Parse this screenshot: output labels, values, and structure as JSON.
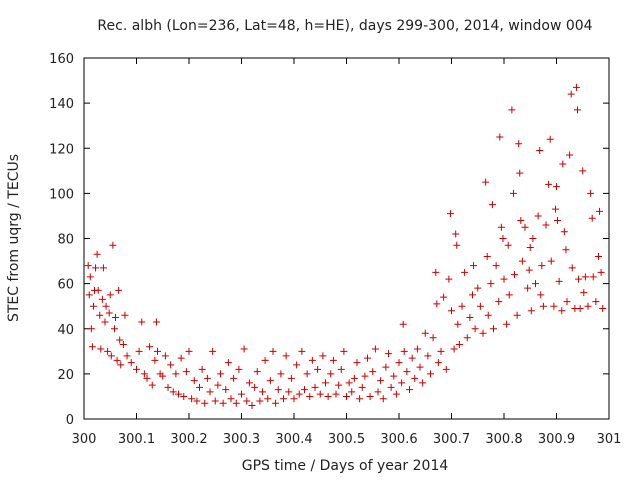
{
  "chart_data": {
    "type": "scatter",
    "title": "Rec. albh (Lon=236, Lat=48, h=HE), days 299-300, 2014, window 004",
    "xlabel": "GPS time / Days of year 2014",
    "ylabel": "STEC from uqrg / TECUs",
    "xlim": [
      300,
      301
    ],
    "ylim": [
      0,
      160
    ],
    "xticks": [
      "300",
      "300.1",
      "300.2",
      "300.3",
      "300.4",
      "300.5",
      "300.6",
      "300.7",
      "300.8",
      "300.9",
      "301"
    ],
    "yticks": [
      "0",
      "20",
      "40",
      "60",
      "80",
      "100",
      "120",
      "140",
      "160"
    ],
    "marker": "+",
    "color": "#cc0000",
    "grid": false,
    "series": [
      {
        "name": "STEC",
        "points": [
          [
            300.008,
            68
          ],
          [
            300.01,
            55
          ],
          [
            300.012,
            63
          ],
          [
            300.014,
            40
          ],
          [
            300.016,
            32
          ],
          [
            300.018,
            50
          ],
          [
            300.02,
            57
          ],
          [
            300.022,
            67
          ],
          [
            300.025,
            73
          ],
          [
            300.027,
            57
          ],
          [
            300.03,
            46
          ],
          [
            300.032,
            31
          ],
          [
            300.035,
            53
          ],
          [
            300.037,
            67
          ],
          [
            300.04,
            43
          ],
          [
            300.042,
            50
          ],
          [
            300.045,
            30
          ],
          [
            300.048,
            47
          ],
          [
            300.05,
            55
          ],
          [
            300.052,
            28
          ],
          [
            300.055,
            77
          ],
          [
            300.058,
            40
          ],
          [
            300.06,
            45
          ],
          [
            300.063,
            26
          ],
          [
            300.066,
            57
          ],
          [
            300.068,
            35
          ],
          [
            300.07,
            24
          ],
          [
            300.075,
            33
          ],
          [
            300.078,
            46
          ],
          [
            300.082,
            28
          ],
          [
            300.09,
            25
          ],
          [
            300.1,
            22
          ],
          [
            300.105,
            30
          ],
          [
            300.11,
            43
          ],
          [
            300.115,
            20
          ],
          [
            300.12,
            18
          ],
          [
            300.125,
            32
          ],
          [
            300.13,
            15
          ],
          [
            300.135,
            26
          ],
          [
            300.138,
            43
          ],
          [
            300.14,
            30
          ],
          [
            300.145,
            20
          ],
          [
            300.15,
            19
          ],
          [
            300.155,
            28
          ],
          [
            300.16,
            14
          ],
          [
            300.165,
            24
          ],
          [
            300.17,
            12
          ],
          [
            300.175,
            20
          ],
          [
            300.18,
            11
          ],
          [
            300.185,
            27
          ],
          [
            300.19,
            10
          ],
          [
            300.195,
            21
          ],
          [
            300.2,
            30
          ],
          [
            300.205,
            9
          ],
          [
            300.21,
            17
          ],
          [
            300.215,
            8
          ],
          [
            300.22,
            14
          ],
          [
            300.225,
            22
          ],
          [
            300.23,
            7
          ],
          [
            300.235,
            18
          ],
          [
            300.24,
            12
          ],
          [
            300.245,
            30
          ],
          [
            300.25,
            8
          ],
          [
            300.255,
            15
          ],
          [
            300.26,
            20
          ],
          [
            300.265,
            7
          ],
          [
            300.27,
            13
          ],
          [
            300.275,
            25
          ],
          [
            300.28,
            9
          ],
          [
            300.285,
            18
          ],
          [
            300.29,
            7
          ],
          [
            300.295,
            22
          ],
          [
            300.3,
            11
          ],
          [
            300.305,
            31
          ],
          [
            300.31,
            8
          ],
          [
            300.315,
            16
          ],
          [
            300.32,
            6
          ],
          [
            300.325,
            14
          ],
          [
            300.33,
            21
          ],
          [
            300.335,
            8
          ],
          [
            300.34,
            12
          ],
          [
            300.345,
            26
          ],
          [
            300.35,
            9
          ],
          [
            300.355,
            17
          ],
          [
            300.36,
            30
          ],
          [
            300.365,
            7
          ],
          [
            300.37,
            13
          ],
          [
            300.375,
            20
          ],
          [
            300.38,
            9
          ],
          [
            300.385,
            28
          ],
          [
            300.39,
            12
          ],
          [
            300.395,
            18
          ],
          [
            300.4,
            9
          ],
          [
            300.405,
            24
          ],
          [
            300.41,
            11
          ],
          [
            300.415,
            30
          ],
          [
            300.42,
            13
          ],
          [
            300.425,
            20
          ],
          [
            300.43,
            10
          ],
          [
            300.435,
            26
          ],
          [
            300.44,
            14
          ],
          [
            300.445,
            22
          ],
          [
            300.45,
            11
          ],
          [
            300.455,
            28
          ],
          [
            300.46,
            16
          ],
          [
            300.465,
            10
          ],
          [
            300.47,
            20
          ],
          [
            300.475,
            26
          ],
          [
            300.48,
            11
          ],
          [
            300.485,
            15
          ],
          [
            300.49,
            22
          ],
          [
            300.495,
            30
          ],
          [
            300.5,
            10
          ],
          [
            300.505,
            16
          ],
          [
            300.51,
            12
          ],
          [
            300.515,
            18
          ],
          [
            300.52,
            25
          ],
          [
            300.525,
            9
          ],
          [
            300.53,
            14
          ],
          [
            300.535,
            19
          ],
          [
            300.54,
            27
          ],
          [
            300.545,
            10
          ],
          [
            300.55,
            21
          ],
          [
            300.555,
            31
          ],
          [
            300.56,
            12
          ],
          [
            300.565,
            17
          ],
          [
            300.57,
            9
          ],
          [
            300.575,
            23
          ],
          [
            300.58,
            29
          ],
          [
            300.585,
            14
          ],
          [
            300.59,
            19
          ],
          [
            300.595,
            11
          ],
          [
            300.6,
            25
          ],
          [
            300.605,
            16
          ],
          [
            300.608,
            42
          ],
          [
            300.61,
            30
          ],
          [
            300.615,
            21
          ],
          [
            300.62,
            13
          ],
          [
            300.625,
            27
          ],
          [
            300.63,
            18
          ],
          [
            300.635,
            31
          ],
          [
            300.64,
            23
          ],
          [
            300.645,
            16
          ],
          [
            300.65,
            38
          ],
          [
            300.655,
            28
          ],
          [
            300.66,
            20
          ],
          [
            300.665,
            36
          ],
          [
            300.67,
            65
          ],
          [
            300.672,
            51
          ],
          [
            300.675,
            25
          ],
          [
            300.68,
            30
          ],
          [
            300.685,
            54
          ],
          [
            300.69,
            22
          ],
          [
            300.695,
            62
          ],
          [
            300.698,
            91
          ],
          [
            300.7,
            48
          ],
          [
            300.705,
            31
          ],
          [
            300.708,
            82
          ],
          [
            300.71,
            77
          ],
          [
            300.712,
            42
          ],
          [
            300.715,
            33
          ],
          [
            300.72,
            50
          ],
          [
            300.725,
            65
          ],
          [
            300.73,
            36
          ],
          [
            300.735,
            45
          ],
          [
            300.74,
            55
          ],
          [
            300.742,
            68
          ],
          [
            300.745,
            40
          ],
          [
            300.75,
            58
          ],
          [
            300.755,
            50
          ],
          [
            300.76,
            38
          ],
          [
            300.765,
            105
          ],
          [
            300.768,
            72
          ],
          [
            300.77,
            46
          ],
          [
            300.775,
            60
          ],
          [
            300.778,
            95
          ],
          [
            300.78,
            40
          ],
          [
            300.785,
            68
          ],
          [
            300.79,
            52
          ],
          [
            300.792,
            125
          ],
          [
            300.795,
            85
          ],
          [
            300.798,
            80
          ],
          [
            300.8,
            62
          ],
          [
            300.805,
            42
          ],
          [
            300.808,
            77
          ],
          [
            300.81,
            55
          ],
          [
            300.815,
            137
          ],
          [
            300.818,
            100
          ],
          [
            300.82,
            64
          ],
          [
            300.825,
            46
          ],
          [
            300.828,
            122
          ],
          [
            300.83,
            109
          ],
          [
            300.832,
            88
          ],
          [
            300.835,
            70
          ],
          [
            300.84,
            85
          ],
          [
            300.845,
            58
          ],
          [
            300.848,
            66
          ],
          [
            300.85,
            76
          ],
          [
            300.852,
            48
          ],
          [
            300.855,
            80
          ],
          [
            300.86,
            60
          ],
          [
            300.865,
            90
          ],
          [
            300.868,
            119
          ],
          [
            300.87,
            55
          ],
          [
            300.872,
            68
          ],
          [
            300.875,
            50
          ],
          [
            300.88,
            86
          ],
          [
            300.885,
            104
          ],
          [
            300.888,
            124
          ],
          [
            300.89,
            70
          ],
          [
            300.895,
            50
          ],
          [
            300.898,
            93
          ],
          [
            300.9,
            103
          ],
          [
            300.902,
            88
          ],
          [
            300.905,
            61
          ],
          [
            300.91,
            48
          ],
          [
            300.912,
            113
          ],
          [
            300.915,
            83
          ],
          [
            300.918,
            75
          ],
          [
            300.92,
            52
          ],
          [
            300.925,
            117
          ],
          [
            300.928,
            144
          ],
          [
            300.93,
            67
          ],
          [
            300.935,
            49
          ],
          [
            300.938,
            147
          ],
          [
            300.94,
            137
          ],
          [
            300.942,
            62
          ],
          [
            300.945,
            49
          ],
          [
            300.95,
            110
          ],
          [
            300.952,
            56
          ],
          [
            300.955,
            63
          ],
          [
            300.96,
            50
          ],
          [
            300.965,
            100
          ],
          [
            300.968,
            89
          ],
          [
            300.97,
            63
          ],
          [
            300.975,
            52
          ],
          [
            300.98,
            72
          ],
          [
            300.982,
            92
          ],
          [
            300.985,
            65
          ],
          [
            300.988,
            49
          ]
        ]
      }
    ]
  }
}
